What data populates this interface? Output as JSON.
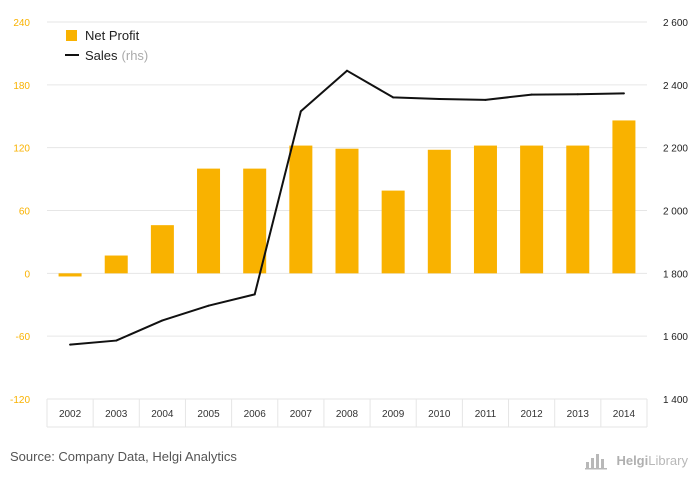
{
  "chart_data": {
    "type": "bar",
    "categories": [
      "2002",
      "2003",
      "2004",
      "2005",
      "2006",
      "2007",
      "2008",
      "2009",
      "2010",
      "2011",
      "2012",
      "2013",
      "2014"
    ],
    "series": [
      {
        "name": "Net Profit",
        "type": "bar",
        "axis": "left",
        "color": "#f9b200",
        "values": [
          -3,
          17,
          46,
          100,
          100,
          122,
          119,
          79,
          118,
          122,
          122,
          122,
          146
        ]
      },
      {
        "name": "Sales",
        "name_suffix": "(rhs)",
        "type": "line",
        "axis": "right",
        "color": "#111111",
        "values": [
          1573,
          1586,
          1650,
          1697,
          1733,
          2316,
          2445,
          2360,
          2355,
          2352,
          2369,
          2370,
          2373
        ]
      }
    ],
    "left_axis": {
      "ylim": [
        -120,
        240
      ],
      "ticks": [
        -120,
        -60,
        0,
        60,
        120,
        180,
        240
      ],
      "tick_labels": [
        "-120",
        "-60",
        "0",
        "60",
        "120",
        "180",
        "240"
      ],
      "color": "#f9b200"
    },
    "right_axis": {
      "ylim": [
        1400,
        2600
      ],
      "ticks": [
        1400,
        1600,
        1800,
        2000,
        2200,
        2400,
        2600
      ],
      "tick_labels": [
        "1 400",
        "1 600",
        "1 800",
        "2 000",
        "2 200",
        "2 400",
        "2 600"
      ],
      "color": "#222222"
    },
    "grid": true,
    "legend_position": "top-left",
    "title": "",
    "xlabel": "",
    "ylabel": ""
  },
  "footer": {
    "source": "Source: Company Data, Helgi Analytics",
    "brand_bold": "Helgi",
    "brand_thin": "Library"
  }
}
